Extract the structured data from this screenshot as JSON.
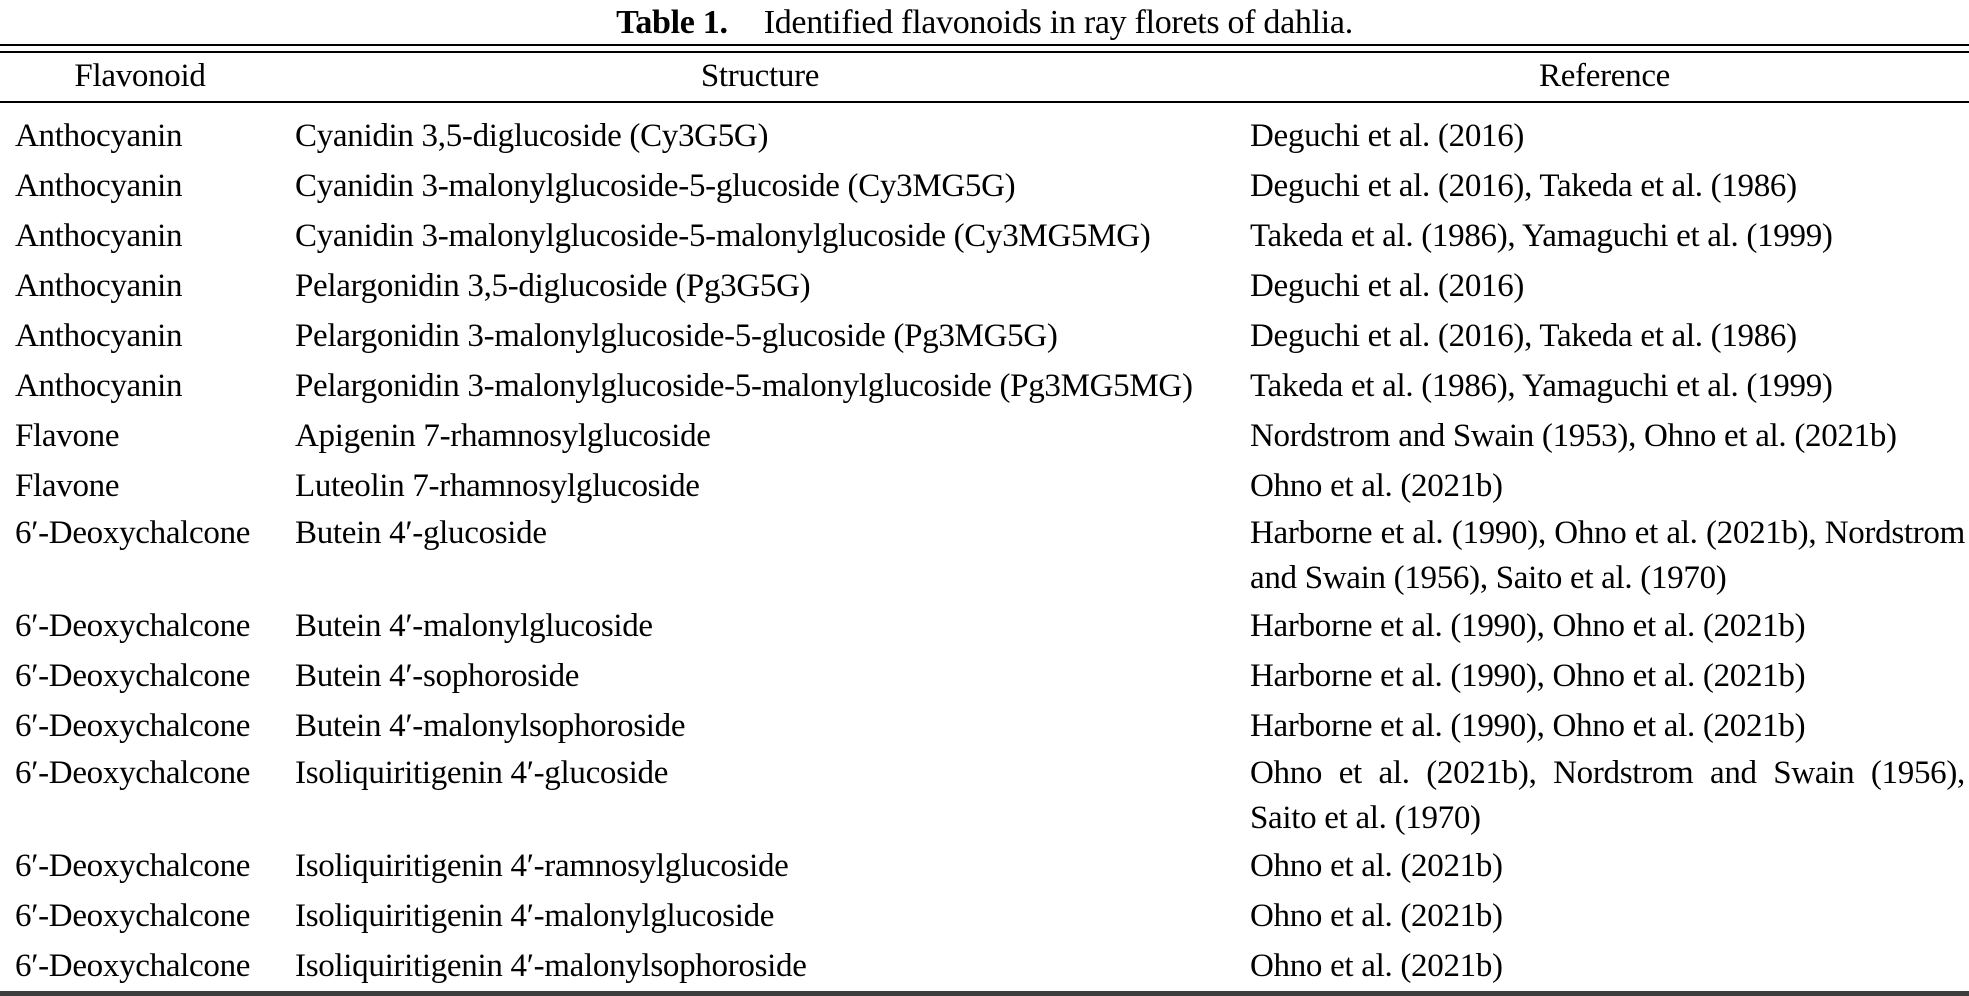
{
  "table": {
    "title_label": "Table 1.",
    "title_text": "Identified flavonoids in ray florets of dahlia.",
    "columns": [
      "Flavonoid",
      "Structure",
      "Reference"
    ],
    "rows": [
      {
        "flavonoid": "Anthocyanin",
        "structure": "Cyanidin 3,5-diglucoside (Cy3G5G)",
        "reference_lines": [
          "Deguchi et al. (2016)"
        ]
      },
      {
        "flavonoid": "Anthocyanin",
        "structure": "Cyanidin 3-malonylglucoside-5-glucoside (Cy3MG5G)",
        "reference_lines": [
          "Deguchi et al. (2016), Takeda et al. (1986)"
        ]
      },
      {
        "flavonoid": "Anthocyanin",
        "structure": "Cyanidin 3-malonylglucoside-5-malonylglucoside (Cy3MG5MG)",
        "reference_lines": [
          "Takeda et al. (1986), Yamaguchi et al. (1999)"
        ]
      },
      {
        "flavonoid": "Anthocyanin",
        "structure": "Pelargonidin 3,5-diglucoside (Pg3G5G)",
        "reference_lines": [
          "Deguchi et al. (2016)"
        ]
      },
      {
        "flavonoid": "Anthocyanin",
        "structure": "Pelargonidin 3-malonylglucoside-5-glucoside (Pg3MG5G)",
        "reference_lines": [
          "Deguchi et al. (2016), Takeda et al. (1986)"
        ]
      },
      {
        "flavonoid": "Anthocyanin",
        "structure": "Pelargonidin 3-malonylglucoside-5-malonylglucoside (Pg3MG5MG)",
        "reference_lines": [
          "Takeda et al. (1986), Yamaguchi et al. (1999)"
        ]
      },
      {
        "flavonoid": "Flavone",
        "structure": "Apigenin 7-rhamnosylglucoside",
        "reference_lines": [
          "Nordstrom and Swain (1953), Ohno et al. (2021b)"
        ]
      },
      {
        "flavonoid": "Flavone",
        "structure": "Luteolin 7-rhamnosylglucoside",
        "reference_lines": [
          "Ohno et al. (2021b)"
        ]
      },
      {
        "flavonoid": "6′-Deoxychalcone",
        "structure": "Butein 4′-glucoside",
        "reference_lines": [
          "Harborne et al. (1990), Ohno et al. (2021b), Nordstrom",
          "and Swain (1956), Saito et al. (1970)"
        ]
      },
      {
        "flavonoid": "6′-Deoxychalcone",
        "structure": "Butein 4′-malonylglucoside",
        "reference_lines": [
          "Harborne et al. (1990), Ohno et al. (2021b)"
        ]
      },
      {
        "flavonoid": "6′-Deoxychalcone",
        "structure": "Butein 4′-sophoroside",
        "reference_lines": [
          "Harborne et al. (1990), Ohno et al. (2021b)"
        ]
      },
      {
        "flavonoid": "6′-Deoxychalcone",
        "structure": "Butein 4′-malonylsophoroside",
        "reference_lines": [
          "Harborne et al. (1990), Ohno et al. (2021b)"
        ]
      },
      {
        "flavonoid": "6′-Deoxychalcone",
        "structure": "Isoliquiritigenin 4′-glucoside",
        "reference_lines": [
          "Ohno et al. (2021b), Nordstrom and Swain (1956),",
          "Saito et al. (1970)"
        ]
      },
      {
        "flavonoid": "6′-Deoxychalcone",
        "structure": "Isoliquiritigenin 4′-ramnosylglucoside",
        "reference_lines": [
          "Ohno et al. (2021b)"
        ]
      },
      {
        "flavonoid": "6′-Deoxychalcone",
        "structure": "Isoliquiritigenin 4′-malonylglucoside",
        "reference_lines": [
          "Ohno et al. (2021b)"
        ]
      },
      {
        "flavonoid": "6′-Deoxychalcone",
        "structure": "Isoliquiritigenin 4′-malonylsophoroside",
        "reference_lines": [
          "Ohno et al. (2021b)"
        ]
      }
    ]
  }
}
